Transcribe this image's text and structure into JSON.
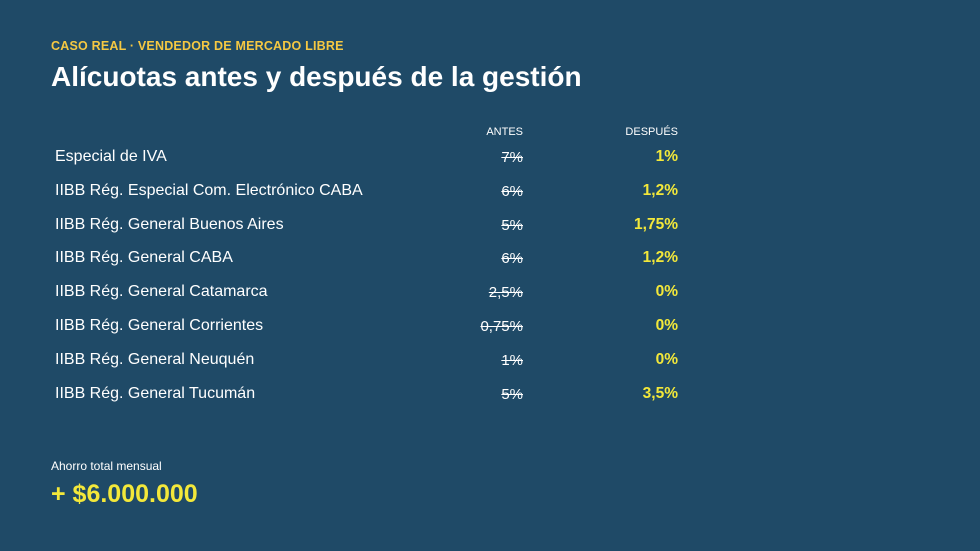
{
  "header": {
    "eyebrow": "CASO REAL · VENDEDOR DE MERCADO LIBRE",
    "title": "Alícuotas antes y después de la gestión"
  },
  "table": {
    "columns": {
      "before": "ANTES",
      "after": "DESPUÉS"
    },
    "rows": [
      {
        "label": "Especial de IVA",
        "before": "7%",
        "after": "1%"
      },
      {
        "label": "IIBB Rég. Especial Com. Electrónico CABA",
        "before": "6%",
        "after": "1,2%"
      },
      {
        "label": "IIBB Rég. General Buenos Aires",
        "before": "5%",
        "after": "1,75%"
      },
      {
        "label": "IIBB Rég. General CABA",
        "before": "6%",
        "after": "1,2%"
      },
      {
        "label": "IIBB Rég. General Catamarca",
        "before": "2,5%",
        "after": "0%"
      },
      {
        "label": "IIBB Rég. General Corrientes",
        "before": "0,75%",
        "after": "0%"
      },
      {
        "label": "IIBB Rég. General Neuquén",
        "before": "1%",
        "after": "0%"
      },
      {
        "label": "IIBB Rég. General Tucumán",
        "before": "5%",
        "after": "3,5%"
      }
    ]
  },
  "savings": {
    "label": "Ahorro total mensual",
    "value": "+ $6.000.000"
  },
  "colors": {
    "background": "#1f4a67",
    "accent_eyebrow": "#f5c842",
    "accent_values": "#f3e83a"
  }
}
